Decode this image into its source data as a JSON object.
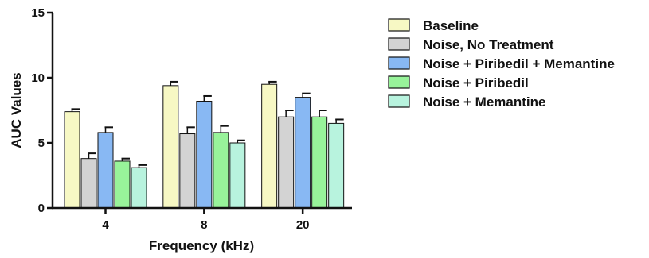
{
  "chart_data": {
    "type": "bar",
    "title": "",
    "xlabel": "Frequency (kHz)",
    "ylabel": "AUC Values",
    "ylim": [
      0,
      15
    ],
    "yticks": [
      0,
      5,
      10,
      15
    ],
    "grid": false,
    "legend_position": "right",
    "categories": [
      "4",
      "8",
      "20"
    ],
    "series": [
      {
        "name": "Baseline",
        "color": "#f7f8c4",
        "values": [
          7.4,
          9.4,
          9.5
        ],
        "errors": [
          0.2,
          0.3,
          0.2
        ]
      },
      {
        "name": "Noise, No Treatment",
        "color": "#d3d3d3",
        "values": [
          3.8,
          5.7,
          7.0
        ],
        "errors": [
          0.4,
          0.5,
          0.5
        ]
      },
      {
        "name": "Noise + Piribedil + Memantine",
        "color": "#88b8f3",
        "values": [
          5.8,
          8.2,
          8.5
        ],
        "errors": [
          0.4,
          0.4,
          0.3
        ]
      },
      {
        "name": "Noise + Piribedil",
        "color": "#98f39a",
        "values": [
          3.6,
          5.8,
          7.0
        ],
        "errors": [
          0.2,
          0.5,
          0.5
        ]
      },
      {
        "name": "Noise + Memantine",
        "color": "#b8f3de",
        "values": [
          3.1,
          5.0,
          6.5
        ],
        "errors": [
          0.2,
          0.2,
          0.3
        ]
      }
    ]
  }
}
